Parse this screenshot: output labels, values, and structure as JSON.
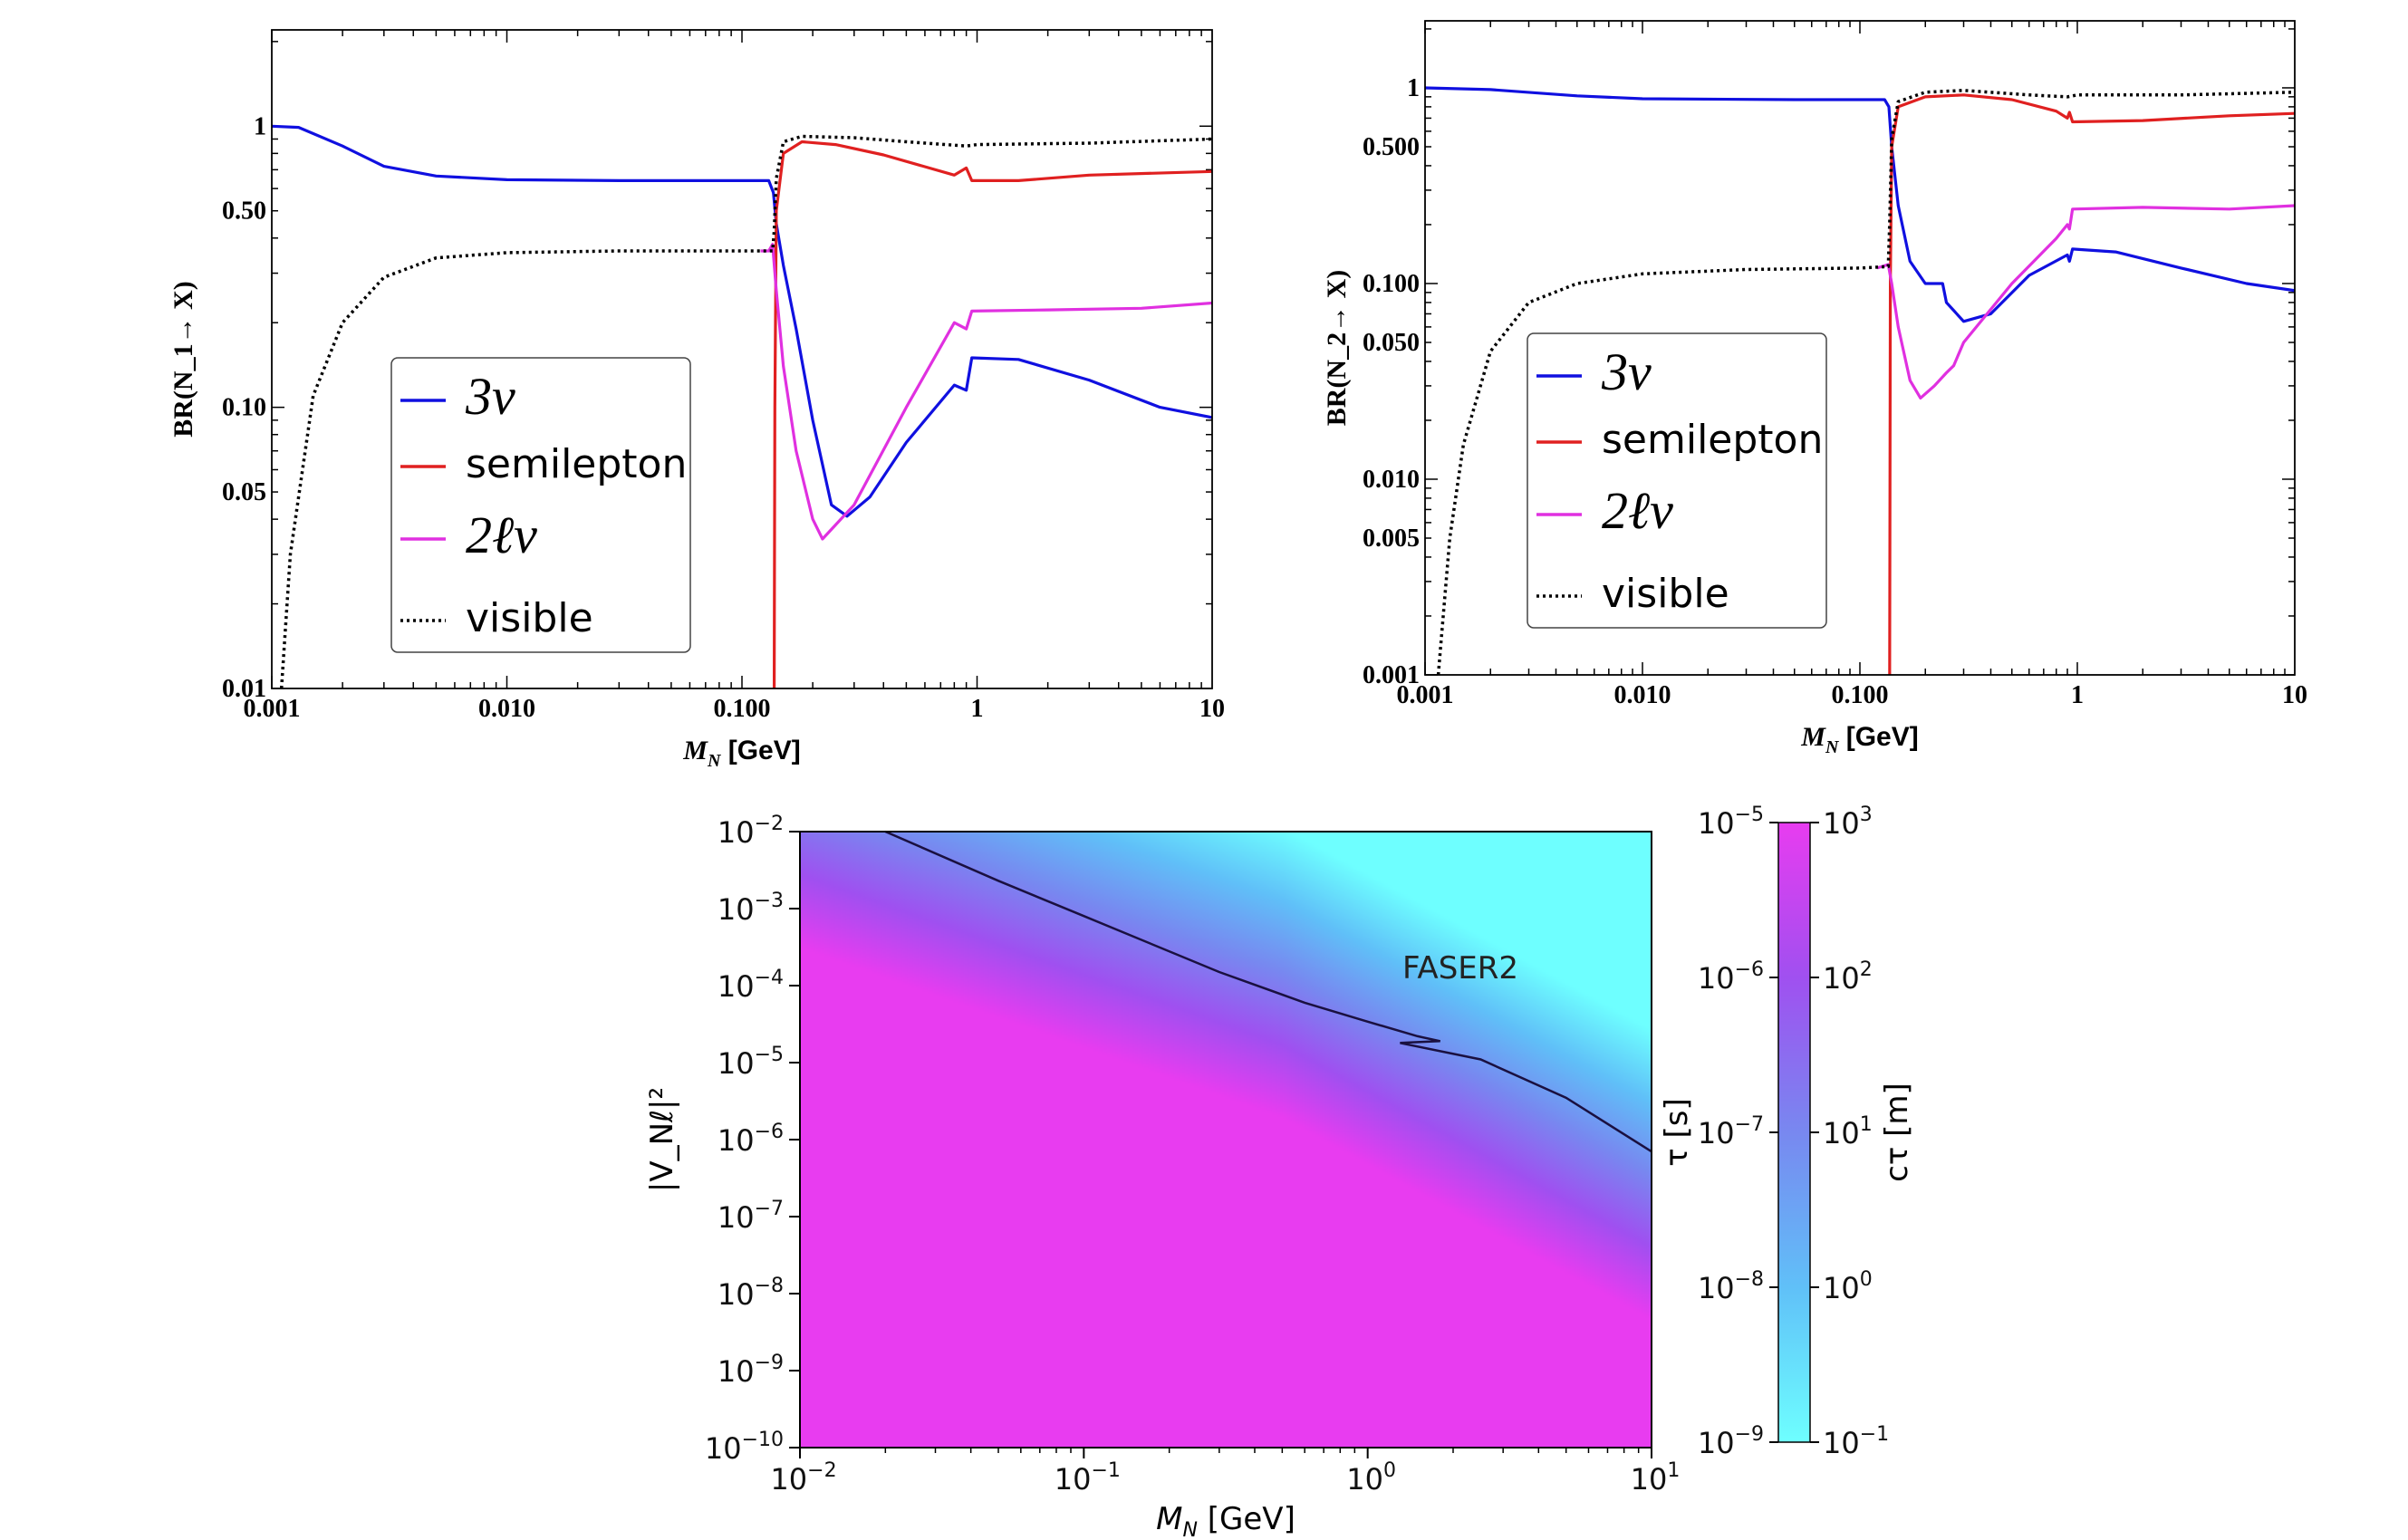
{
  "chart_data": [
    {
      "type": "line",
      "panel": "top-left",
      "xscale": "log",
      "yscale": "log",
      "xlim": [
        0.001,
        10
      ],
      "ylim": [
        0.01,
        2.2
      ],
      "xlabel": "M_N [GeV]",
      "ylabel": "BR(N_1→ X)",
      "xticks": [
        {
          "value": 0.001,
          "label": "0.001"
        },
        {
          "value": 0.01,
          "label": "0.010"
        },
        {
          "value": 0.1,
          "label": "0.100"
        },
        {
          "value": 1,
          "label": "1"
        },
        {
          "value": 10,
          "label": "10"
        }
      ],
      "yticks": [
        {
          "value": 0.01,
          "label": "0.01"
        },
        {
          "value": 0.05,
          "label": "0.05"
        },
        {
          "value": 0.1,
          "label": "0.10"
        },
        {
          "value": 0.5,
          "label": "0.50"
        },
        {
          "value": 1,
          "label": "1"
        }
      ],
      "legend": {
        "position": "left-center",
        "entries": [
          "3ν",
          "semilepton",
          "2ℓν",
          "visible"
        ]
      },
      "series": [
        {
          "name": "3ν",
          "color": "#1010e0",
          "style": "solid",
          "points": [
            [
              0.001,
              1.0
            ],
            [
              0.0013,
              0.99
            ],
            [
              0.002,
              0.85
            ],
            [
              0.003,
              0.72
            ],
            [
              0.005,
              0.665
            ],
            [
              0.01,
              0.645
            ],
            [
              0.03,
              0.64
            ],
            [
              0.08,
              0.64
            ],
            [
              0.13,
              0.64
            ],
            [
              0.136,
              0.58
            ],
            [
              0.14,
              0.45
            ],
            [
              0.15,
              0.32
            ],
            [
              0.17,
              0.19
            ],
            [
              0.2,
              0.09
            ],
            [
              0.24,
              0.045
            ],
            [
              0.28,
              0.041
            ],
            [
              0.35,
              0.048
            ],
            [
              0.5,
              0.075
            ],
            [
              0.8,
              0.12
            ],
            [
              0.9,
              0.115
            ],
            [
              0.95,
              0.15
            ],
            [
              1.5,
              0.148
            ],
            [
              3,
              0.125
            ],
            [
              6,
              0.1
            ],
            [
              10,
              0.092
            ]
          ]
        },
        {
          "name": "semilepton",
          "color": "#e02020",
          "style": "solid",
          "points": [
            [
              0.137,
              0.008
            ],
            [
              0.138,
              0.1
            ],
            [
              0.14,
              0.5
            ],
            [
              0.15,
              0.8
            ],
            [
              0.18,
              0.88
            ],
            [
              0.25,
              0.86
            ],
            [
              0.4,
              0.79
            ],
            [
              0.8,
              0.67
            ],
            [
              0.9,
              0.71
            ],
            [
              0.95,
              0.64
            ],
            [
              1.5,
              0.64
            ],
            [
              3,
              0.67
            ],
            [
              10,
              0.69
            ]
          ]
        },
        {
          "name": "2ℓν",
          "color": "#e030e0",
          "style": "solid",
          "points": [
            [
              0.12,
              0.36
            ],
            [
              0.13,
              0.36
            ],
            [
              0.135,
              0.38
            ],
            [
              0.14,
              0.26
            ],
            [
              0.15,
              0.14
            ],
            [
              0.17,
              0.07
            ],
            [
              0.2,
              0.04
            ],
            [
              0.22,
              0.034
            ],
            [
              0.3,
              0.045
            ],
            [
              0.5,
              0.1
            ],
            [
              0.8,
              0.2
            ],
            [
              0.9,
              0.19
            ],
            [
              0.95,
              0.22
            ],
            [
              2,
              0.222
            ],
            [
              5,
              0.225
            ],
            [
              10,
              0.235
            ]
          ]
        },
        {
          "name": "visible",
          "color": "#000000",
          "style": "dotted",
          "points": [
            [
              0.0011,
              0.01
            ],
            [
              0.0012,
              0.03
            ],
            [
              0.0015,
              0.11
            ],
            [
              0.002,
              0.2
            ],
            [
              0.003,
              0.29
            ],
            [
              0.005,
              0.34
            ],
            [
              0.01,
              0.355
            ],
            [
              0.03,
              0.36
            ],
            [
              0.1,
              0.36
            ],
            [
              0.135,
              0.36
            ],
            [
              0.137,
              0.42
            ],
            [
              0.14,
              0.65
            ],
            [
              0.15,
              0.88
            ],
            [
              0.18,
              0.92
            ],
            [
              0.3,
              0.91
            ],
            [
              0.5,
              0.88
            ],
            [
              0.9,
              0.85
            ],
            [
              1,
              0.86
            ],
            [
              3,
              0.87
            ],
            [
              10,
              0.9
            ]
          ]
        }
      ]
    },
    {
      "type": "line",
      "panel": "top-right",
      "xscale": "log",
      "yscale": "log",
      "xlim": [
        0.001,
        10
      ],
      "ylim": [
        0.001,
        2.2
      ],
      "xlabel": "M_N [GeV]",
      "ylabel": "BR(N_2→ X)",
      "xticks": [
        {
          "value": 0.001,
          "label": "0.001"
        },
        {
          "value": 0.01,
          "label": "0.010"
        },
        {
          "value": 0.1,
          "label": "0.100"
        },
        {
          "value": 1,
          "label": "1"
        },
        {
          "value": 10,
          "label": "10"
        }
      ],
      "yticks": [
        {
          "value": 0.001,
          "label": "0.001"
        },
        {
          "value": 0.005,
          "label": "0.005"
        },
        {
          "value": 0.01,
          "label": "0.010"
        },
        {
          "value": 0.05,
          "label": "0.050"
        },
        {
          "value": 0.1,
          "label": "0.100"
        },
        {
          "value": 0.5,
          "label": "0.500"
        },
        {
          "value": 1,
          "label": "1"
        }
      ],
      "legend": {
        "position": "left-center",
        "entries": [
          "3ν",
          "semilepton",
          "2ℓν",
          "visible"
        ]
      },
      "series": [
        {
          "name": "3ν",
          "color": "#1010e0",
          "style": "solid",
          "points": [
            [
              0.001,
              1.0
            ],
            [
              0.002,
              0.98
            ],
            [
              0.005,
              0.91
            ],
            [
              0.01,
              0.88
            ],
            [
              0.05,
              0.87
            ],
            [
              0.13,
              0.87
            ],
            [
              0.136,
              0.8
            ],
            [
              0.14,
              0.5
            ],
            [
              0.15,
              0.25
            ],
            [
              0.17,
              0.13
            ],
            [
              0.2,
              0.1
            ],
            [
              0.24,
              0.1
            ],
            [
              0.25,
              0.08
            ],
            [
              0.3,
              0.064
            ],
            [
              0.4,
              0.07
            ],
            [
              0.6,
              0.11
            ],
            [
              0.9,
              0.14
            ],
            [
              0.92,
              0.13
            ],
            [
              0.95,
              0.15
            ],
            [
              1.5,
              0.145
            ],
            [
              3,
              0.12
            ],
            [
              6,
              0.1
            ],
            [
              10,
              0.092
            ]
          ]
        },
        {
          "name": "semilepton",
          "color": "#e02020",
          "style": "solid",
          "points": [
            [
              0.137,
              0.0008
            ],
            [
              0.138,
              0.1
            ],
            [
              0.14,
              0.5
            ],
            [
              0.15,
              0.8
            ],
            [
              0.2,
              0.9
            ],
            [
              0.3,
              0.92
            ],
            [
              0.5,
              0.87
            ],
            [
              0.8,
              0.76
            ],
            [
              0.9,
              0.7
            ],
            [
              0.92,
              0.75
            ],
            [
              0.95,
              0.67
            ],
            [
              2,
              0.68
            ],
            [
              5,
              0.72
            ],
            [
              10,
              0.74
            ]
          ]
        },
        {
          "name": "2ℓν",
          "color": "#e030e0",
          "style": "solid",
          "points": [
            [
              0.12,
              0.12
            ],
            [
              0.135,
              0.125
            ],
            [
              0.14,
              0.1
            ],
            [
              0.15,
              0.06
            ],
            [
              0.17,
              0.032
            ],
            [
              0.19,
              0.026
            ],
            [
              0.22,
              0.03
            ],
            [
              0.25,
              0.035
            ],
            [
              0.27,
              0.038
            ],
            [
              0.3,
              0.05
            ],
            [
              0.5,
              0.1
            ],
            [
              0.8,
              0.17
            ],
            [
              0.9,
              0.2
            ],
            [
              0.92,
              0.19
            ],
            [
              0.95,
              0.24
            ],
            [
              2,
              0.245
            ],
            [
              5,
              0.24
            ],
            [
              10,
              0.25
            ]
          ]
        },
        {
          "name": "visible",
          "color": "#000000",
          "style": "dotted",
          "points": [
            [
              0.00115,
              0.001
            ],
            [
              0.0013,
              0.005
            ],
            [
              0.0015,
              0.015
            ],
            [
              0.002,
              0.045
            ],
            [
              0.003,
              0.08
            ],
            [
              0.005,
              0.1
            ],
            [
              0.01,
              0.112
            ],
            [
              0.03,
              0.118
            ],
            [
              0.1,
              0.12
            ],
            [
              0.135,
              0.122
            ],
            [
              0.137,
              0.2
            ],
            [
              0.14,
              0.55
            ],
            [
              0.15,
              0.85
            ],
            [
              0.2,
              0.95
            ],
            [
              0.3,
              0.97
            ],
            [
              0.6,
              0.92
            ],
            [
              0.9,
              0.9
            ],
            [
              1,
              0.92
            ],
            [
              3,
              0.92
            ],
            [
              10,
              0.95
            ]
          ]
        }
      ]
    },
    {
      "type": "heatmap",
      "panel": "bottom",
      "xscale": "log",
      "yscale": "log",
      "xlim": [
        0.01,
        10
      ],
      "ylim": [
        1e-10,
        0.01
      ],
      "xlabel": "M_N [GeV]",
      "ylabel": "|V_Nℓ|²",
      "annotation": "FASER2",
      "xtick_labels": [
        {
          "base": "10",
          "exp": "−2"
        },
        {
          "base": "10",
          "exp": "−1"
        },
        {
          "base": "10",
          "exp": "0"
        },
        {
          "base": "10",
          "exp": "1"
        }
      ],
      "ytick_labels": [
        {
          "base": "10",
          "exp": "−10"
        },
        {
          "base": "10",
          "exp": "−9"
        },
        {
          "base": "10",
          "exp": "−8"
        },
        {
          "base": "10",
          "exp": "−7"
        },
        {
          "base": "10",
          "exp": "−6"
        },
        {
          "base": "10",
          "exp": "−5"
        },
        {
          "base": "10",
          "exp": "−4"
        },
        {
          "base": "10",
          "exp": "−3"
        },
        {
          "base": "10",
          "exp": "−2"
        }
      ],
      "colorbar": {
        "left_label": "τ [s]",
        "right_label": "cτ [m]",
        "left_range": [
          1e-09,
          1e-05
        ],
        "right_range": [
          0.1,
          1000
        ],
        "left_ticks": [
          {
            "base": "10",
            "exp": "−9"
          },
          {
            "base": "10",
            "exp": "−8"
          },
          {
            "base": "10",
            "exp": "−7"
          },
          {
            "base": "10",
            "exp": "−6"
          },
          {
            "base": "10",
            "exp": "−5"
          }
        ],
        "right_ticks": [
          {
            "base": "10",
            "exp": "−1"
          },
          {
            "base": "10",
            "exp": "0"
          },
          {
            "base": "10",
            "exp": "1"
          },
          {
            "base": "10",
            "exp": "2"
          },
          {
            "base": "10",
            "exp": "3"
          }
        ],
        "colors": [
          "#6effff",
          "#60c0f8",
          "#7888f0",
          "#a050f0",
          "#e83cf0"
        ]
      },
      "contour": {
        "label": "FASER2",
        "color": "#1a1040",
        "points": [
          [
            0.02,
            0.01
          ],
          [
            0.05,
            0.0023
          ],
          [
            0.1,
            0.0008
          ],
          [
            0.3,
            0.00015
          ],
          [
            0.6,
            6e-05
          ],
          [
            1.0,
            3.4e-05
          ],
          [
            1.5,
            2.2e-05
          ],
          [
            1.8,
            1.9e-05
          ],
          [
            1.3,
            1.8e-05
          ],
          [
            2.5,
            1.1e-05
          ],
          [
            5,
            3.5e-06
          ],
          [
            10,
            7e-07
          ]
        ]
      }
    }
  ]
}
